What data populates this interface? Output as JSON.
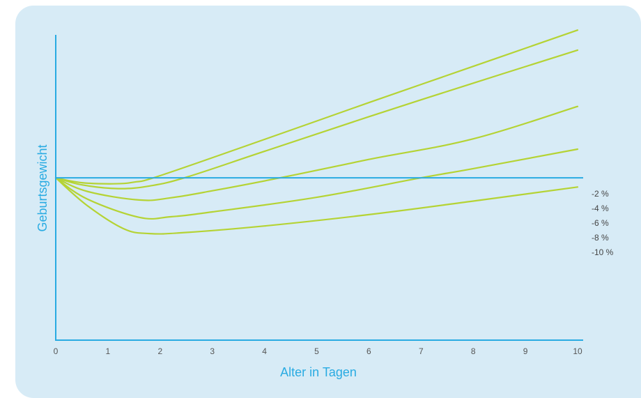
{
  "colors": {
    "background": "#d7ebf6",
    "axis": "#29abe2",
    "curve": "#b5d334",
    "axis_title": "#29abe2",
    "tick_text": "#555555"
  },
  "chart_data": {
    "type": "line",
    "title": "",
    "xlabel": "Alter in Tagen",
    "ylabel": "Geburtsgewicht",
    "xlim": [
      0,
      10
    ],
    "ylim": [
      -30,
      29
    ],
    "x_ticks": [
      "0",
      "1",
      "2",
      "3",
      "4",
      "5",
      "6",
      "7",
      "8",
      "9",
      "10"
    ],
    "baseline": 0,
    "grid": false,
    "series": [
      {
        "name": "-2 %",
        "x": [
          0,
          0.5,
          1.1,
          1.5,
          2,
          4,
          6,
          8,
          10
        ],
        "y": [
          0,
          -0.9,
          -1.1,
          -0.8,
          0.4,
          7.1,
          13.9,
          20.6,
          27.3
        ]
      },
      {
        "name": "-4 %",
        "x": [
          0,
          0.5,
          1.2,
          1.8,
          2.5,
          4,
          6,
          8,
          10
        ],
        "y": [
          0,
          -1.3,
          -2,
          -1.5,
          0.1,
          4.9,
          11.3,
          17.5,
          23.6
        ]
      },
      {
        "name": "-6 %",
        "x": [
          0,
          0.6,
          1.6,
          2.2,
          3,
          4.3,
          6,
          8,
          10
        ],
        "y": [
          0,
          -2.5,
          -4.1,
          -3.7,
          -2.4,
          0,
          3.4,
          7.2,
          13.2
        ]
      },
      {
        "name": "-8 %",
        "x": [
          0,
          0.6,
          1.6,
          2.2,
          3,
          5,
          7,
          8,
          10
        ],
        "y": [
          0,
          -3.9,
          -7.3,
          -7.2,
          -6.3,
          -3.6,
          0,
          1.7,
          5.3
        ]
      },
      {
        "name": "-10 %",
        "x": [
          0,
          0.6,
          1.3,
          1.8,
          2.5,
          4,
          6,
          8,
          10
        ],
        "y": [
          0,
          -5.1,
          -9.4,
          -10.3,
          -10.1,
          -8.9,
          -6.8,
          -4.3,
          -1.7
        ]
      }
    ]
  }
}
